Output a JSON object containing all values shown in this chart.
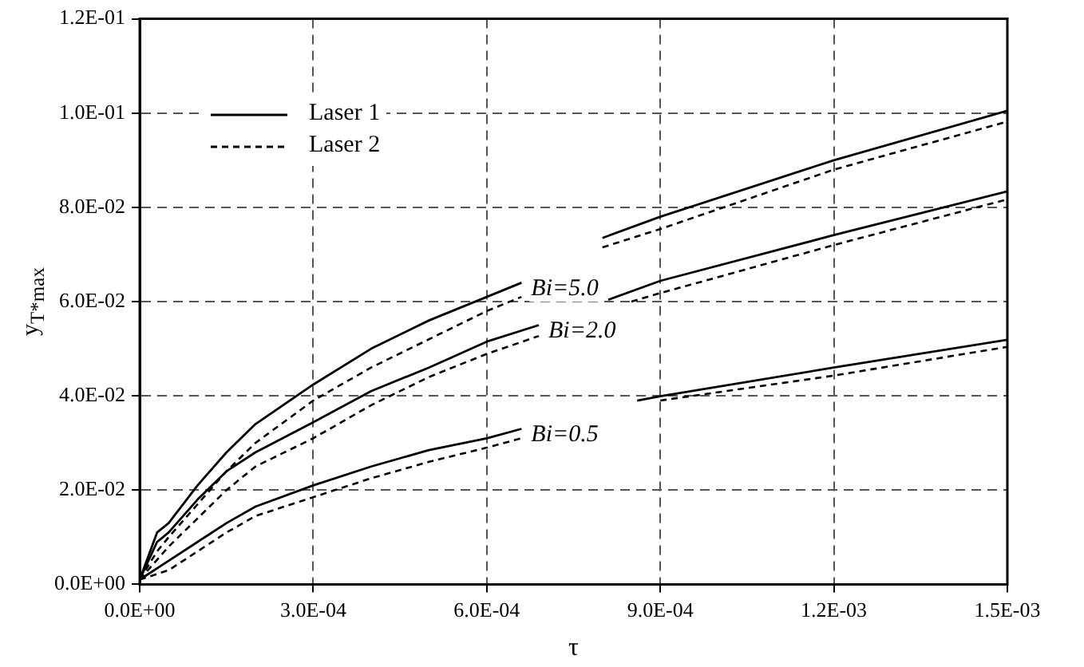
{
  "chart_data": {
    "type": "line",
    "xlabel": "τ",
    "ylabel": "y$_{T*max}$",
    "xlim": [
      0,
      0.0015
    ],
    "xticks": [
      {
        "value": 0,
        "label": "0.0E+00"
      },
      {
        "value": 0.0003,
        "label": "3.0E-04"
      },
      {
        "value": 0.0006,
        "label": "6.0E-04"
      },
      {
        "value": 0.0009,
        "label": "9.0E-04"
      },
      {
        "value": 0.0012,
        "label": "1.2E-03"
      },
      {
        "value": 0.0015,
        "label": "1.5E-03"
      }
    ],
    "ylim": [
      0,
      0.12
    ],
    "yticks": [
      {
        "value": 0,
        "label": "0.0E+00"
      },
      {
        "value": 0.02,
        "label": "2.0E-02"
      },
      {
        "value": 0.04,
        "label": "4.0E-02"
      },
      {
        "value": 0.06,
        "label": "6.0E-02"
      },
      {
        "value": 0.08,
        "label": "8.0E-02"
      },
      {
        "value": 0.1,
        "label": "1.0E-01"
      },
      {
        "value": 0.12,
        "label": "1.2E-01"
      }
    ],
    "grid": true,
    "legend": "top left",
    "marker": "none",
    "annotations": [
      "Bi=5.0",
      "Bi=2.0",
      "Bi=0.5"
    ],
    "series": [
      {
        "name": "Laser 1",
        "color": "#000000",
        "line_style": "solid",
        "x": [
          0,
          3e-05,
          5e-05,
          0.0001,
          0.00015,
          0.0002,
          0.0003,
          0.0004,
          0.0005,
          0.0006,
          0.00066,
          0.00072,
          0.0008,
          0.0009,
          0.0012,
          0.0015
        ],
        "values": [
          0.001,
          0.011,
          0.013,
          0.021,
          0.028,
          0.034,
          0.0424,
          0.05,
          0.056,
          0.061,
          0.064,
          null,
          0.0735,
          0.078,
          0.09,
          0.1005
        ]
      },
      {
        "name": "Laser 2",
        "color": "#000000",
        "line_style": "dashed",
        "x": [
          0,
          3e-05,
          5e-05,
          0.0001,
          0.00015,
          0.0002,
          0.0003,
          0.0004,
          0.0005,
          0.0006,
          0.00066,
          0.00072,
          0.0008,
          0.0009,
          0.0012,
          0.0015
        ],
        "values": [
          0.001,
          0.007,
          0.01,
          0.017,
          0.024,
          0.03,
          0.039,
          0.046,
          0.052,
          0.058,
          0.061,
          null,
          0.0715,
          0.0754,
          0.088,
          0.0982
        ]
      },
      {
        "color": "#000000",
        "line_style": "solid",
        "x": [
          0,
          3e-05,
          5e-05,
          0.0001,
          0.00015,
          0.0002,
          0.0003,
          0.0004,
          0.0005,
          0.0006,
          0.00069,
          0.00075,
          0.00081,
          0.0009,
          0.0012,
          0.0015
        ],
        "values": [
          0.001,
          0.009,
          0.011,
          0.018,
          0.024,
          0.028,
          0.0344,
          0.041,
          0.046,
          0.0515,
          0.055,
          null,
          0.0604,
          0.0644,
          0.0741,
          0.0834
        ]
      },
      {
        "color": "#000000",
        "line_style": "dashed",
        "x": [
          0,
          5e-05,
          0.0001,
          0.00015,
          0.0002,
          0.0003,
          0.0004,
          0.0005,
          0.0006,
          0.00069,
          0.00075,
          0.00085,
          0.0009,
          0.0012,
          0.0015
        ],
        "values": [
          0.001,
          0.008,
          0.014,
          0.02,
          0.025,
          0.031,
          0.038,
          0.044,
          0.0489,
          0.0527,
          null,
          0.06,
          0.0618,
          0.072,
          0.0817
        ]
      },
      {
        "color": "#000000",
        "line_style": "solid",
        "x": [
          0,
          5e-05,
          0.0001,
          0.00015,
          0.0002,
          0.0003,
          0.0004,
          0.0005,
          0.0006,
          0.00066,
          0.00074,
          0.00086,
          0.0009,
          0.0012,
          0.0015
        ],
        "values": [
          0.001,
          0.005,
          0.009,
          0.013,
          0.0165,
          0.021,
          0.025,
          0.0285,
          0.031,
          0.033,
          null,
          0.039,
          0.0399,
          0.046,
          0.0519
        ]
      },
      {
        "color": "#000000",
        "line_style": "dashed",
        "x": [
          0,
          5e-05,
          0.0001,
          0.00015,
          0.0002,
          0.0003,
          0.0004,
          0.0005,
          0.0006,
          0.00066,
          0.00076,
          0.0009,
          0.0012,
          0.0015
        ],
        "values": [
          0.001,
          0.003,
          0.007,
          0.011,
          0.0145,
          0.0185,
          0.0225,
          0.026,
          0.029,
          0.031,
          null,
          0.039,
          0.0443,
          0.0504
        ]
      }
    ]
  }
}
